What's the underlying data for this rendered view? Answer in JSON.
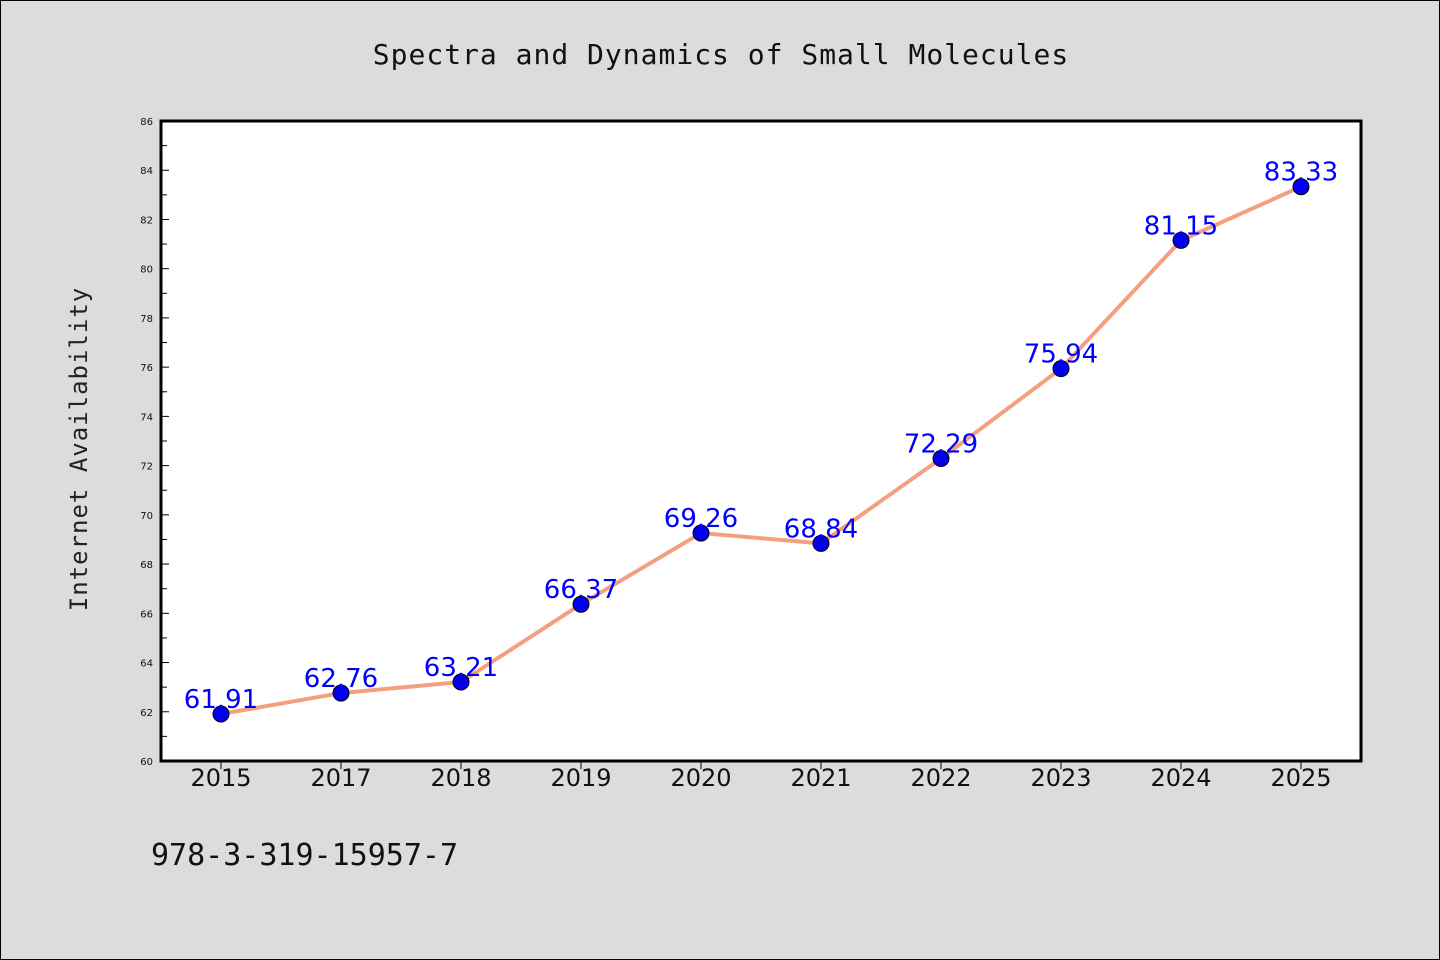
{
  "chart_data": {
    "type": "line",
    "title": "Spectra and Dynamics of Small Molecules",
    "xlabel": "",
    "ylabel": "Internet Availability",
    "categories": [
      "2015",
      "2017",
      "2018",
      "2019",
      "2020",
      "2021",
      "2022",
      "2023",
      "2024",
      "2025"
    ],
    "series": [
      {
        "values": [
          61.91,
          62.76,
          63.21,
          66.37,
          69.26,
          68.84,
          72.29,
          75.94,
          81.15,
          83.33
        ],
        "data_labels": [
          "61.91",
          "62.76",
          "63.21",
          "66.37",
          "69.26",
          "68.84",
          "72.29",
          "75.94",
          "81.15",
          "83.33"
        ]
      }
    ],
    "ylim": [
      60,
      86
    ],
    "y_ticks": [
      "60",
      "62",
      "64",
      "66",
      "68",
      "70",
      "72",
      "74",
      "76",
      "78",
      "80",
      "82",
      "84",
      "86"
    ],
    "grid": false,
    "legend": "none",
    "colors": {
      "line": "#f4a07f",
      "marker": "#0000ee",
      "data_label": "#0000ff",
      "plot_background": "#ffffff",
      "figure_background": "#dcdcdc"
    }
  },
  "footer": {
    "text": "978-3-319-15957-7"
  }
}
